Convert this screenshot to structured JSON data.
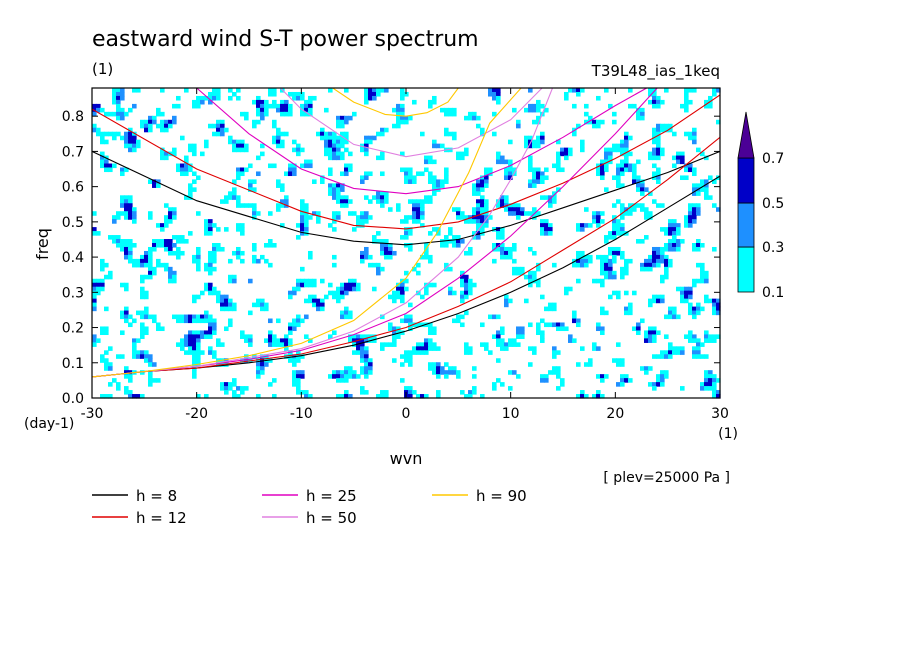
{
  "title": "eastward wind S-T power spectrum",
  "unit_label": "(1)",
  "experiment": "T39L48_ias_1keq",
  "annotation": "[ plev=25000 Pa ]",
  "chart_data": {
    "type": "contour",
    "title": "eastward wind S-T power spectrum",
    "xlabel": "wvn",
    "ylabel": "freq",
    "x_unit": "(1)",
    "y_unit": "(day-1)",
    "xlim": [
      -30,
      30
    ],
    "ylim": [
      0,
      0.88
    ],
    "xticks": [
      "-30",
      "-20",
      "-10",
      "0",
      "10",
      "20",
      "30"
    ],
    "yticks": [
      "0.0",
      "0.1",
      "0.2",
      "0.3",
      "0.4",
      "0.5",
      "0.6",
      "0.7",
      "0.8"
    ],
    "colorbar": {
      "levels": [
        "0.1",
        "0.3",
        "0.5",
        "0.7"
      ],
      "colors": [
        "#00ffff",
        "#1e90ff",
        "#0000c8",
        "#4b0096"
      ]
    },
    "series": [
      {
        "name": "h =  8",
        "color": "#000000",
        "upper": [
          [
            -30,
            0.7
          ],
          [
            -20,
            0.56
          ],
          [
            -10,
            0.47
          ],
          [
            -5,
            0.445
          ],
          [
            0,
            0.435
          ],
          [
            5,
            0.45
          ],
          [
            10,
            0.49
          ],
          [
            15,
            0.54
          ],
          [
            20,
            0.59
          ],
          [
            25,
            0.64
          ],
          [
            30,
            0.7
          ]
        ],
        "lower": [
          [
            -30,
            0.06
          ],
          [
            -25,
            0.075
          ],
          [
            -20,
            0.085
          ],
          [
            -15,
            0.1
          ],
          [
            -10,
            0.12
          ],
          [
            -5,
            0.15
          ],
          [
            0,
            0.19
          ],
          [
            5,
            0.24
          ],
          [
            10,
            0.3
          ],
          [
            15,
            0.37
          ],
          [
            20,
            0.45
          ],
          [
            25,
            0.54
          ],
          [
            30,
            0.63
          ]
        ]
      },
      {
        "name": "h = 12",
        "color": "#e00000",
        "upper": [
          [
            -30,
            0.82
          ],
          [
            -20,
            0.65
          ],
          [
            -10,
            0.53
          ],
          [
            -5,
            0.49
          ],
          [
            0,
            0.48
          ],
          [
            5,
            0.5
          ],
          [
            10,
            0.55
          ],
          [
            15,
            0.61
          ],
          [
            20,
            0.68
          ],
          [
            25,
            0.76
          ],
          [
            30,
            0.86
          ]
        ],
        "lower": [
          [
            -30,
            0.06
          ],
          [
            -25,
            0.075
          ],
          [
            -20,
            0.085
          ],
          [
            -15,
            0.105
          ],
          [
            -10,
            0.125
          ],
          [
            -5,
            0.16
          ],
          [
            0,
            0.2
          ],
          [
            5,
            0.26
          ],
          [
            10,
            0.33
          ],
          [
            15,
            0.42
          ],
          [
            20,
            0.51
          ],
          [
            25,
            0.62
          ],
          [
            30,
            0.74
          ]
        ]
      },
      {
        "name": "h = 25",
        "color": "#e000c0",
        "upper": [
          [
            -20,
            0.88
          ],
          [
            -15,
            0.75
          ],
          [
            -10,
            0.65
          ],
          [
            -5,
            0.595
          ],
          [
            0,
            0.58
          ],
          [
            5,
            0.6
          ],
          [
            10,
            0.66
          ],
          [
            15,
            0.74
          ],
          [
            20,
            0.83
          ],
          [
            23,
            0.88
          ]
        ],
        "lower": [
          [
            -30,
            0.06
          ],
          [
            -25,
            0.075
          ],
          [
            -20,
            0.09
          ],
          [
            -15,
            0.11
          ],
          [
            -10,
            0.135
          ],
          [
            -5,
            0.18
          ],
          [
            0,
            0.24
          ],
          [
            5,
            0.34
          ],
          [
            10,
            0.46
          ],
          [
            15,
            0.6
          ],
          [
            20,
            0.75
          ],
          [
            24,
            0.88
          ]
        ]
      },
      {
        "name": "h = 50",
        "color": "#e080e0",
        "upper": [
          [
            -12,
            0.88
          ],
          [
            -10,
            0.82
          ],
          [
            -5,
            0.72
          ],
          [
            0,
            0.685
          ],
          [
            5,
            0.71
          ],
          [
            10,
            0.79
          ],
          [
            13,
            0.88
          ]
        ],
        "lower": [
          [
            -30,
            0.06
          ],
          [
            -25,
            0.075
          ],
          [
            -20,
            0.09
          ],
          [
            -15,
            0.115
          ],
          [
            -10,
            0.14
          ],
          [
            -5,
            0.19
          ],
          [
            0,
            0.27
          ],
          [
            5,
            0.4
          ],
          [
            8,
            0.52
          ],
          [
            10,
            0.62
          ],
          [
            12,
            0.73
          ],
          [
            14,
            0.88
          ]
        ]
      },
      {
        "name": "h = 90",
        "color": "#ffc800",
        "upper": [
          [
            -7,
            0.88
          ],
          [
            -5,
            0.84
          ],
          [
            -2,
            0.805
          ],
          [
            0,
            0.8
          ],
          [
            2,
            0.81
          ],
          [
            4,
            0.84
          ],
          [
            5,
            0.88
          ]
        ],
        "lower": [
          [
            -30,
            0.06
          ],
          [
            -25,
            0.075
          ],
          [
            -20,
            0.095
          ],
          [
            -15,
            0.12
          ],
          [
            -10,
            0.155
          ],
          [
            -5,
            0.22
          ],
          [
            0,
            0.34
          ],
          [
            3,
            0.47
          ],
          [
            6,
            0.64
          ],
          [
            8,
            0.78
          ],
          [
            11,
            0.88
          ]
        ]
      }
    ]
  }
}
